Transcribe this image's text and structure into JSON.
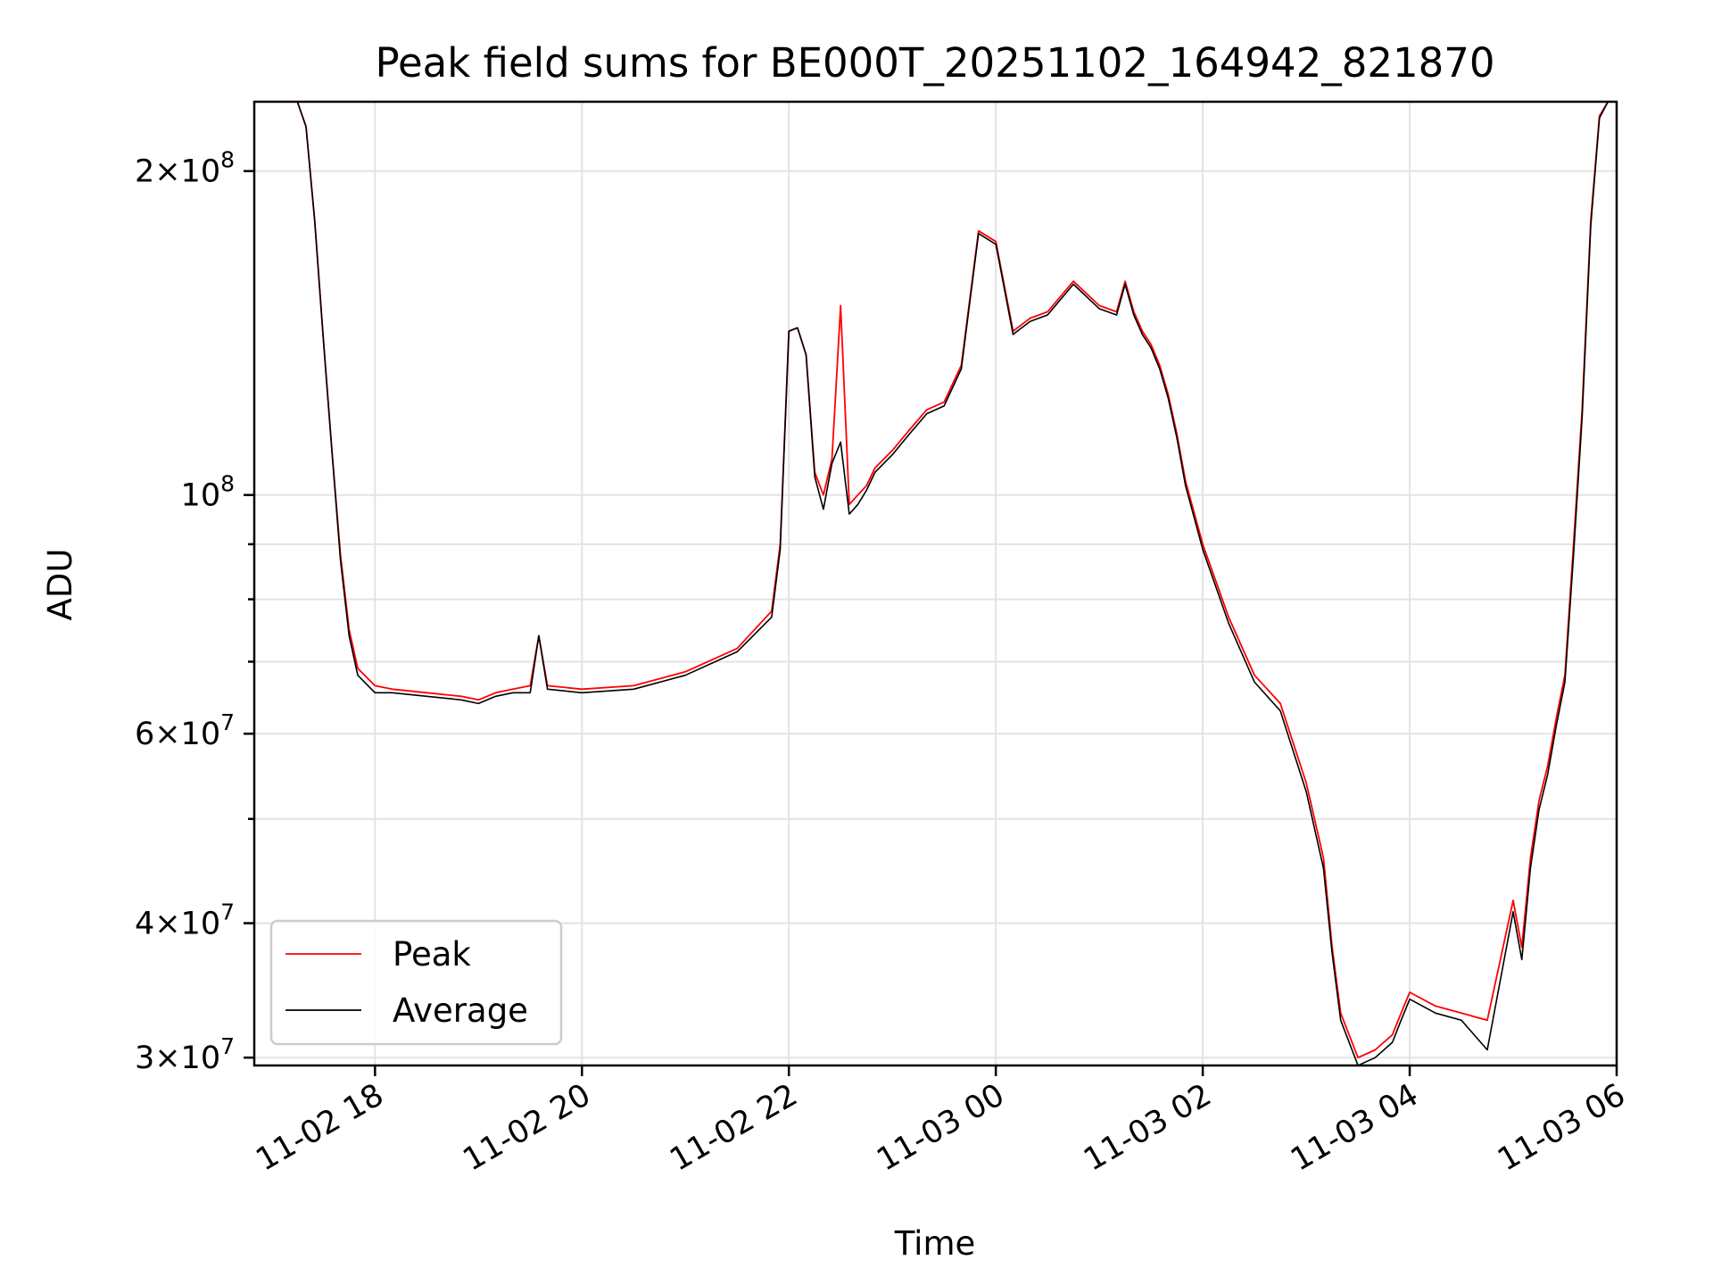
{
  "chart_data": {
    "type": "line",
    "title": "Peak field sums for BE000T_20251102_164942_821870",
    "xlabel": "Time",
    "ylabel": "ADU",
    "yscale": "log",
    "ylim": [
      29500000,
      232000000
    ],
    "xlim": [
      "11-02 16:50",
      "11-03 06:00"
    ],
    "grid": true,
    "legend_position": "lower-left",
    "x_ticks": [
      "11-02 18",
      "11-02 20",
      "11-02 22",
      "11-03 00",
      "11-03 02",
      "11-03 04",
      "11-03 06"
    ],
    "y_major_ticks": [
      {
        "value": 30000000,
        "mantissa": "3",
        "exponent": "7"
      },
      {
        "value": 40000000,
        "mantissa": "4",
        "exponent": "7"
      },
      {
        "value": 60000000,
        "mantissa": "6",
        "exponent": "7"
      },
      {
        "value": 100000000,
        "mantissa": "",
        "exponent": "8"
      },
      {
        "value": 200000000,
        "mantissa": "2",
        "exponent": "8"
      }
    ],
    "y_minor_ticks": [
      50000000,
      70000000,
      80000000,
      90000000
    ],
    "x": [
      "11-02 16:50",
      "11-02 17:15",
      "11-02 17:20",
      "11-02 17:25",
      "11-02 17:30",
      "11-02 17:35",
      "11-02 17:40",
      "11-02 17:45",
      "11-02 17:50",
      "11-02 18:00",
      "11-02 18:10",
      "11-02 18:30",
      "11-02 18:50",
      "11-02 19:00",
      "11-02 19:10",
      "11-02 19:20",
      "11-02 19:30",
      "11-02 19:35",
      "11-02 19:40",
      "11-02 20:00",
      "11-02 20:30",
      "11-02 21:00",
      "11-02 21:30",
      "11-02 21:50",
      "11-02 21:55",
      "11-02 22:00",
      "11-02 22:05",
      "11-02 22:10",
      "11-02 22:15",
      "11-02 22:20",
      "11-02 22:25",
      "11-02 22:30",
      "11-02 22:35",
      "11-02 22:40",
      "11-02 22:45",
      "11-02 22:50",
      "11-02 23:00",
      "11-02 23:10",
      "11-02 23:20",
      "11-02 23:30",
      "11-02 23:40",
      "11-02 23:50",
      "11-03 00:00",
      "11-03 00:10",
      "11-03 00:15",
      "11-03 00:20",
      "11-03 00:25",
      "11-03 00:30",
      "11-03 00:45",
      "11-03 01:00",
      "11-03 01:10",
      "11-03 01:15",
      "11-03 01:20",
      "11-03 01:25",
      "11-03 01:30",
      "11-03 01:35",
      "11-03 01:40",
      "11-03 01:45",
      "11-03 01:50",
      "11-03 02:00",
      "11-03 02:15",
      "11-03 02:30",
      "11-03 02:45",
      "11-03 03:00",
      "11-03 03:10",
      "11-03 03:15",
      "11-03 03:20",
      "11-03 03:30",
      "11-03 03:40",
      "11-03 03:50",
      "11-03 03:55",
      "11-03 04:00",
      "11-03 04:15",
      "11-03 04:30",
      "11-03 04:45",
      "11-03 05:00",
      "11-03 05:05",
      "11-03 05:10",
      "11-03 05:15",
      "11-03 05:20",
      "11-03 05:25",
      "11-03 05:30",
      "11-03 05:35",
      "11-03 05:40",
      "11-03 05:45",
      "11-03 05:50",
      "11-03 05:55",
      "11-03 06:00"
    ],
    "series": [
      {
        "name": "Peak",
        "color": "#ff0000",
        "values": [
          232000000,
          232000000,
          220000000,
          180000000,
          140000000,
          110000000,
          88000000,
          75000000,
          69000000,
          66500000,
          66000000,
          65500000,
          65000000,
          64500000,
          65500000,
          66000000,
          66500000,
          74000000,
          66500000,
          66000000,
          66500000,
          68500000,
          72000000,
          78000000,
          90000000,
          142000000,
          143000000,
          135000000,
          105000000,
          100000000,
          108000000,
          150000000,
          98000000,
          100000000,
          102000000,
          106000000,
          110000000,
          115000000,
          120000000,
          122000000,
          132000000,
          176000000,
          172000000,
          142000000,
          144000000,
          146000000,
          147000000,
          148000000,
          158000000,
          150000000,
          148000000,
          158000000,
          148000000,
          142000000,
          138000000,
          132000000,
          124000000,
          114000000,
          103000000,
          90000000,
          77000000,
          68000000,
          64000000,
          54000000,
          46000000,
          38000000,
          33000000,
          30000000,
          30500000,
          31500000,
          33000000,
          34500000,
          33500000,
          33000000,
          32500000,
          42000000,
          38000000,
          46000000,
          52000000,
          56000000,
          62000000,
          68000000,
          90000000,
          120000000,
          180000000,
          225000000,
          232000000,
          232000000
        ]
      },
      {
        "name": "Average",
        "color": "#000000",
        "values": [
          232000000,
          232000000,
          220000000,
          180000000,
          140000000,
          110000000,
          87000000,
          74000000,
          68000000,
          65500000,
          65500000,
          65000000,
          64500000,
          64000000,
          65000000,
          65500000,
          65500000,
          74000000,
          66000000,
          65500000,
          66000000,
          68000000,
          71500000,
          77000000,
          89000000,
          142000000,
          143000000,
          135000000,
          104000000,
          97000000,
          107000000,
          112000000,
          96000000,
          98000000,
          101000000,
          105000000,
          109000000,
          114000000,
          119000000,
          121000000,
          131000000,
          175000000,
          171000000,
          141000000,
          143000000,
          145000000,
          146000000,
          147000000,
          157000000,
          149000000,
          147000000,
          157000000,
          147000000,
          141000000,
          137000000,
          131000000,
          123000000,
          113000000,
          102000000,
          89000000,
          76000000,
          67000000,
          63000000,
          53000000,
          45000000,
          37500000,
          32500000,
          29500000,
          30000000,
          31000000,
          32500000,
          34000000,
          33000000,
          32500000,
          30500000,
          41000000,
          37000000,
          45000000,
          51000000,
          55000000,
          61000000,
          67000000,
          88000000,
          118000000,
          178000000,
          224000000,
          232000000,
          232000000
        ]
      }
    ]
  }
}
